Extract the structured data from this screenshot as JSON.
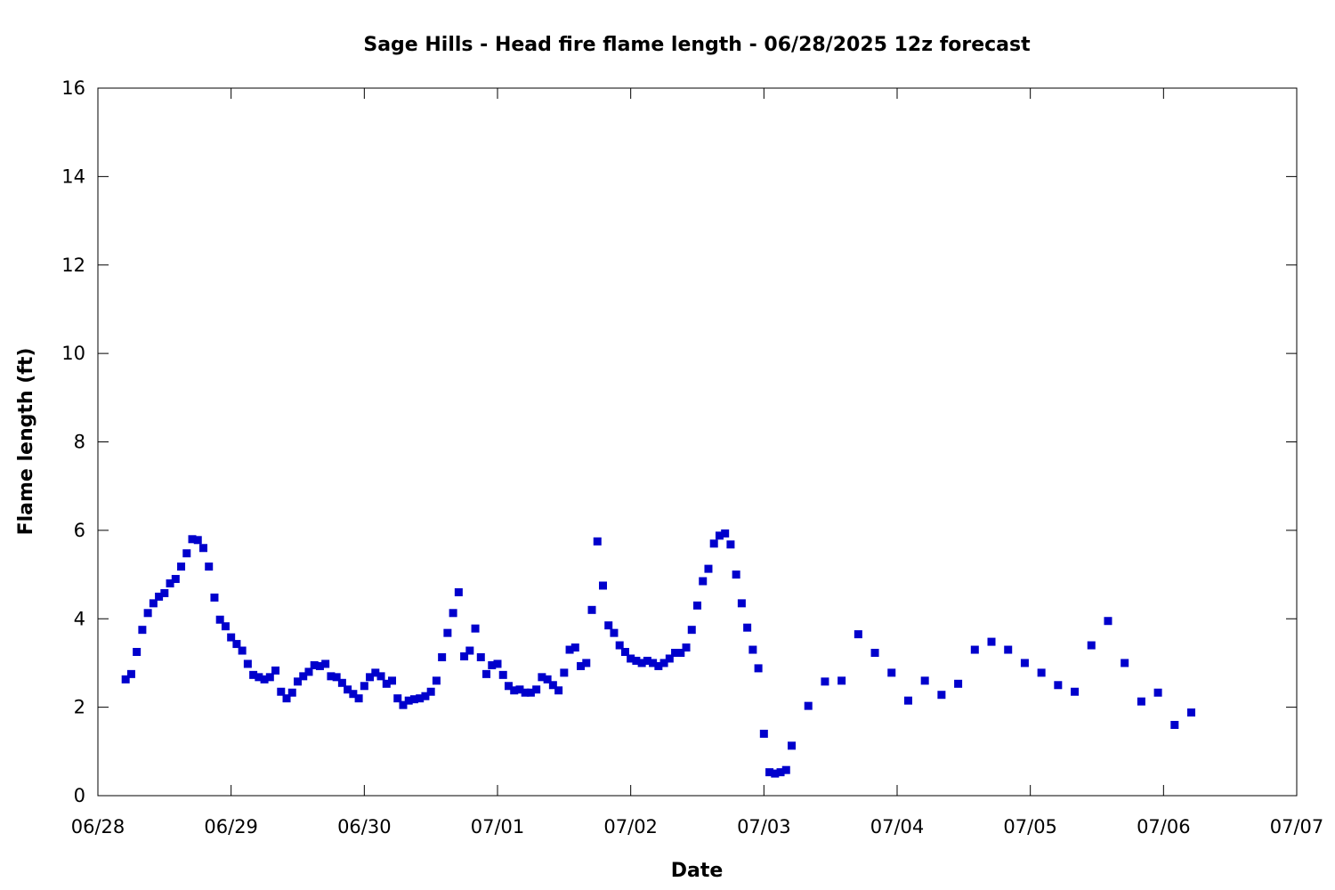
{
  "chart_data": {
    "type": "scatter",
    "title": "Sage Hills - Head fire flame length - 06/28/2025 12z forecast",
    "xlabel": "Date",
    "ylabel": "Flame length (ft)",
    "xlim": [
      "06/28",
      "07/07"
    ],
    "ylim": [
      0,
      16
    ],
    "x_tick_labels": [
      "06/28",
      "06/29",
      "06/30",
      "07/01",
      "07/02",
      "07/03",
      "07/04",
      "07/05",
      "07/06",
      "07/07"
    ],
    "y_tick_labels": [
      "0",
      "2",
      "4",
      "6",
      "8",
      "10",
      "12",
      "14",
      "16"
    ],
    "grid": false,
    "legend": "none",
    "marker_color": "#0000cc",
    "series": [
      {
        "points": [
          [
            "2025-06-28 05:00",
            2.63
          ],
          [
            "2025-06-28 06:00",
            2.75
          ],
          [
            "2025-06-28 07:00",
            3.25
          ],
          [
            "2025-06-28 08:00",
            3.75
          ],
          [
            "2025-06-28 09:00",
            4.13
          ],
          [
            "2025-06-28 10:00",
            4.35
          ],
          [
            "2025-06-28 11:00",
            4.5
          ],
          [
            "2025-06-28 12:00",
            4.58
          ],
          [
            "2025-06-28 13:00",
            4.8
          ],
          [
            "2025-06-28 14:00",
            4.9
          ],
          [
            "2025-06-28 15:00",
            5.18
          ],
          [
            "2025-06-28 16:00",
            5.48
          ],
          [
            "2025-06-28 17:00",
            5.8
          ],
          [
            "2025-06-28 18:00",
            5.78
          ],
          [
            "2025-06-28 19:00",
            5.6
          ],
          [
            "2025-06-28 20:00",
            5.18
          ],
          [
            "2025-06-28 21:00",
            4.48
          ],
          [
            "2025-06-28 22:00",
            3.98
          ],
          [
            "2025-06-28 23:00",
            3.83
          ],
          [
            "2025-06-29 00:00",
            3.58
          ],
          [
            "2025-06-29 01:00",
            3.43
          ],
          [
            "2025-06-29 02:00",
            3.28
          ],
          [
            "2025-06-29 03:00",
            2.98
          ],
          [
            "2025-06-29 04:00",
            2.73
          ],
          [
            "2025-06-29 05:00",
            2.68
          ],
          [
            "2025-06-29 06:00",
            2.63
          ],
          [
            "2025-06-29 07:00",
            2.68
          ],
          [
            "2025-06-29 08:00",
            2.83
          ],
          [
            "2025-06-29 09:00",
            2.35
          ],
          [
            "2025-06-29 10:00",
            2.2
          ],
          [
            "2025-06-29 11:00",
            2.33
          ],
          [
            "2025-06-29 12:00",
            2.58
          ],
          [
            "2025-06-29 13:00",
            2.7
          ],
          [
            "2025-06-29 14:00",
            2.8
          ],
          [
            "2025-06-29 15:00",
            2.95
          ],
          [
            "2025-06-29 16:00",
            2.93
          ],
          [
            "2025-06-29 17:00",
            2.98
          ],
          [
            "2025-06-29 18:00",
            2.7
          ],
          [
            "2025-06-29 19:00",
            2.68
          ],
          [
            "2025-06-29 20:00",
            2.55
          ],
          [
            "2025-06-29 21:00",
            2.4
          ],
          [
            "2025-06-29 22:00",
            2.3
          ],
          [
            "2025-06-29 23:00",
            2.2
          ],
          [
            "2025-06-30 00:00",
            2.48
          ],
          [
            "2025-06-30 01:00",
            2.68
          ],
          [
            "2025-06-30 02:00",
            2.78
          ],
          [
            "2025-06-30 03:00",
            2.7
          ],
          [
            "2025-06-30 04:00",
            2.53
          ],
          [
            "2025-06-30 05:00",
            2.6
          ],
          [
            "2025-06-30 06:00",
            2.2
          ],
          [
            "2025-06-30 07:00",
            2.05
          ],
          [
            "2025-06-30 08:00",
            2.15
          ],
          [
            "2025-06-30 09:00",
            2.18
          ],
          [
            "2025-06-30 10:00",
            2.2
          ],
          [
            "2025-06-30 11:00",
            2.25
          ],
          [
            "2025-06-30 12:00",
            2.35
          ],
          [
            "2025-06-30 13:00",
            2.6
          ],
          [
            "2025-06-30 14:00",
            3.13
          ],
          [
            "2025-06-30 15:00",
            3.68
          ],
          [
            "2025-06-30 16:00",
            4.13
          ],
          [
            "2025-06-30 17:00",
            4.6
          ],
          [
            "2025-06-30 18:00",
            3.15
          ],
          [
            "2025-06-30 19:00",
            3.28
          ],
          [
            "2025-06-30 20:00",
            3.78
          ],
          [
            "2025-06-30 21:00",
            3.13
          ],
          [
            "2025-06-30 22:00",
            2.75
          ],
          [
            "2025-06-30 23:00",
            2.95
          ],
          [
            "2025-07-01 00:00",
            2.98
          ],
          [
            "2025-07-01 01:00",
            2.73
          ],
          [
            "2025-07-01 02:00",
            2.48
          ],
          [
            "2025-07-01 03:00",
            2.38
          ],
          [
            "2025-07-01 04:00",
            2.4
          ],
          [
            "2025-07-01 05:00",
            2.33
          ],
          [
            "2025-07-01 06:00",
            2.33
          ],
          [
            "2025-07-01 07:00",
            2.4
          ],
          [
            "2025-07-01 08:00",
            2.68
          ],
          [
            "2025-07-01 09:00",
            2.63
          ],
          [
            "2025-07-01 10:00",
            2.5
          ],
          [
            "2025-07-01 11:00",
            2.38
          ],
          [
            "2025-07-01 12:00",
            2.78
          ],
          [
            "2025-07-01 13:00",
            3.3
          ],
          [
            "2025-07-01 14:00",
            3.35
          ],
          [
            "2025-07-01 15:00",
            2.93
          ],
          [
            "2025-07-01 16:00",
            3.0
          ],
          [
            "2025-07-01 17:00",
            4.2
          ],
          [
            "2025-07-01 18:00",
            5.75
          ],
          [
            "2025-07-01 19:00",
            4.75
          ],
          [
            "2025-07-01 20:00",
            3.85
          ],
          [
            "2025-07-01 21:00",
            3.68
          ],
          [
            "2025-07-01 22:00",
            3.4
          ],
          [
            "2025-07-01 23:00",
            3.25
          ],
          [
            "2025-07-02 00:00",
            3.1
          ],
          [
            "2025-07-02 01:00",
            3.05
          ],
          [
            "2025-07-02 02:00",
            3.0
          ],
          [
            "2025-07-02 03:00",
            3.05
          ],
          [
            "2025-07-02 04:00",
            3.0
          ],
          [
            "2025-07-02 05:00",
            2.93
          ],
          [
            "2025-07-02 06:00",
            3.0
          ],
          [
            "2025-07-02 07:00",
            3.1
          ],
          [
            "2025-07-02 08:00",
            3.23
          ],
          [
            "2025-07-02 09:00",
            3.23
          ],
          [
            "2025-07-02 10:00",
            3.35
          ],
          [
            "2025-07-02 11:00",
            3.75
          ],
          [
            "2025-07-02 12:00",
            4.3
          ],
          [
            "2025-07-02 13:00",
            4.85
          ],
          [
            "2025-07-02 14:00",
            5.13
          ],
          [
            "2025-07-02 15:00",
            5.7
          ],
          [
            "2025-07-02 16:00",
            5.88
          ],
          [
            "2025-07-02 17:00",
            5.93
          ],
          [
            "2025-07-02 18:00",
            5.68
          ],
          [
            "2025-07-02 19:00",
            5.0
          ],
          [
            "2025-07-02 20:00",
            4.35
          ],
          [
            "2025-07-02 21:00",
            3.8
          ],
          [
            "2025-07-02 22:00",
            3.3
          ],
          [
            "2025-07-02 23:00",
            2.88
          ],
          [
            "2025-07-03 00:00",
            1.4
          ],
          [
            "2025-07-03 01:00",
            0.53
          ],
          [
            "2025-07-03 02:00",
            0.5
          ],
          [
            "2025-07-03 03:00",
            0.53
          ],
          [
            "2025-07-03 04:00",
            0.58
          ],
          [
            "2025-07-03 05:00",
            1.13
          ],
          [
            "2025-07-03 08:00",
            2.03
          ],
          [
            "2025-07-03 11:00",
            2.58
          ],
          [
            "2025-07-03 14:00",
            2.6
          ],
          [
            "2025-07-03 17:00",
            3.65
          ],
          [
            "2025-07-03 20:00",
            3.23
          ],
          [
            "2025-07-03 23:00",
            2.78
          ],
          [
            "2025-07-04 02:00",
            2.15
          ],
          [
            "2025-07-04 05:00",
            2.6
          ],
          [
            "2025-07-04 08:00",
            2.28
          ],
          [
            "2025-07-04 11:00",
            2.53
          ],
          [
            "2025-07-04 14:00",
            3.3
          ],
          [
            "2025-07-04 17:00",
            3.48
          ],
          [
            "2025-07-04 20:00",
            3.3
          ],
          [
            "2025-07-04 23:00",
            3.0
          ],
          [
            "2025-07-05 02:00",
            2.78
          ],
          [
            "2025-07-05 05:00",
            2.5
          ],
          [
            "2025-07-05 08:00",
            2.35
          ],
          [
            "2025-07-05 11:00",
            3.4
          ],
          [
            "2025-07-05 14:00",
            3.95
          ],
          [
            "2025-07-05 17:00",
            3.0
          ],
          [
            "2025-07-05 20:00",
            2.13
          ],
          [
            "2025-07-05 23:00",
            2.33
          ],
          [
            "2025-07-06 02:00",
            1.6
          ],
          [
            "2025-07-06 05:00",
            1.88
          ]
        ]
      }
    ]
  }
}
